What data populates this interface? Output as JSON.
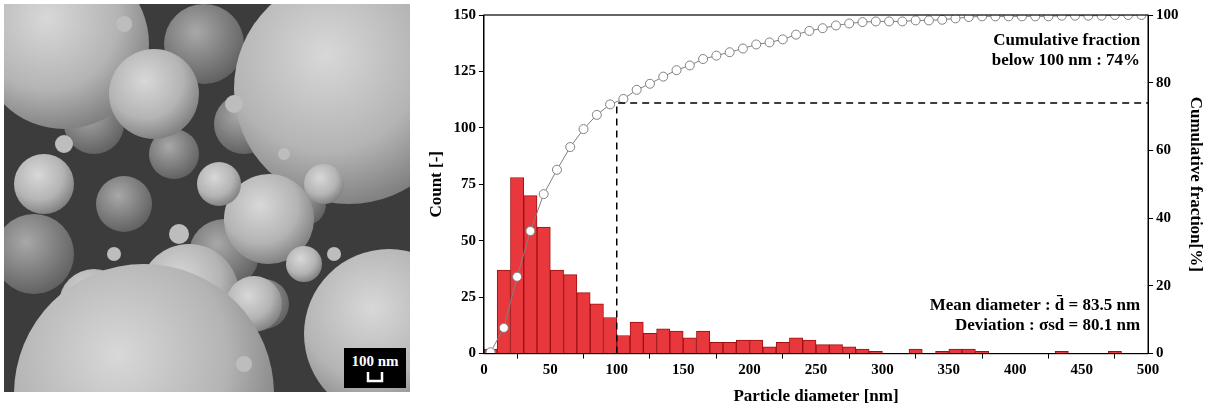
{
  "chart_data": {
    "type": "histogram",
    "x_label": "Particle diameter [nm]",
    "y_label": "Count [-]",
    "y2_label": "Cumulative fraction[%]",
    "bins": [
      0,
      10,
      20,
      30,
      40,
      50,
      60,
      70,
      80,
      90,
      100,
      110,
      120,
      130,
      140,
      150,
      160,
      170,
      180,
      190,
      200,
      210,
      220,
      230,
      240,
      250,
      260,
      270,
      280,
      290,
      300,
      310,
      320,
      330,
      340,
      350,
      360,
      370,
      380,
      390,
      400,
      410,
      420,
      430,
      440,
      450,
      460,
      470,
      480,
      490,
      500
    ],
    "values": [
      2,
      37,
      78,
      70,
      56,
      37,
      35,
      27,
      22,
      16,
      8,
      14,
      9,
      11,
      10,
      7,
      10,
      5,
      5,
      6,
      6,
      3,
      5,
      7,
      6,
      4,
      4,
      3,
      2,
      1,
      0,
      0,
      2,
      0,
      1,
      2,
      2,
      1,
      0,
      0,
      0,
      0,
      0,
      1,
      0,
      0,
      0,
      1,
      0,
      0
    ],
    "color": "#e8383d",
    "cumulative": {
      "axis": "y2",
      "marker": "circle",
      "line_style": "solid",
      "color": "#808080",
      "x": [
        5,
        15,
        25,
        35,
        45,
        55,
        65,
        75,
        85,
        95,
        105,
        115,
        125,
        135,
        145,
        155,
        165,
        175,
        185,
        195,
        205,
        215,
        225,
        235,
        245,
        255,
        265,
        275,
        285,
        295,
        305,
        315,
        325,
        335,
        345,
        355,
        365,
        375,
        385,
        395,
        405,
        415,
        425,
        435,
        445,
        455,
        465,
        475,
        485,
        495
      ],
      "values": [
        0.4,
        7.6,
        22.7,
        36.2,
        47.1,
        54.3,
        61.0,
        66.3,
        70.5,
        73.6,
        75.2,
        77.9,
        79.7,
        81.8,
        83.7,
        85.1,
        87.0,
        88.0,
        89.0,
        90.1,
        91.3,
        91.9,
        92.8,
        94.2,
        95.3,
        96.1,
        96.9,
        97.5,
        97.9,
        98.1,
        98.1,
        98.1,
        98.4,
        98.4,
        98.6,
        99.0,
        99.4,
        99.6,
        99.6,
        99.6,
        99.6,
        99.6,
        99.6,
        99.8,
        99.8,
        99.8,
        99.8,
        100,
        100,
        100
      ]
    },
    "threshold": {
      "x": 100,
      "y2": 74,
      "line_style": "dashed",
      "color": "#000000"
    },
    "annotations": [
      [
        "Cumulative fraction",
        "below 100 nm : 74%"
      ],
      [
        "Mean diameter : d̄ = 83.5 nm",
        "Deviation : σsd = 80.1 nm"
      ]
    ],
    "xlim": [
      0,
      500
    ],
    "xticks": [
      0,
      50,
      100,
      150,
      200,
      250,
      300,
      350,
      400,
      450,
      500
    ],
    "ylim": [
      0,
      150
    ],
    "yticks": [
      0,
      25,
      50,
      75,
      100,
      125,
      150
    ],
    "y2lim": [
      0,
      100
    ],
    "y2ticks": [
      0,
      20,
      40,
      60,
      80,
      100
    ],
    "grid": false
  },
  "micrograph": {
    "scale_bar": "100 nm"
  }
}
